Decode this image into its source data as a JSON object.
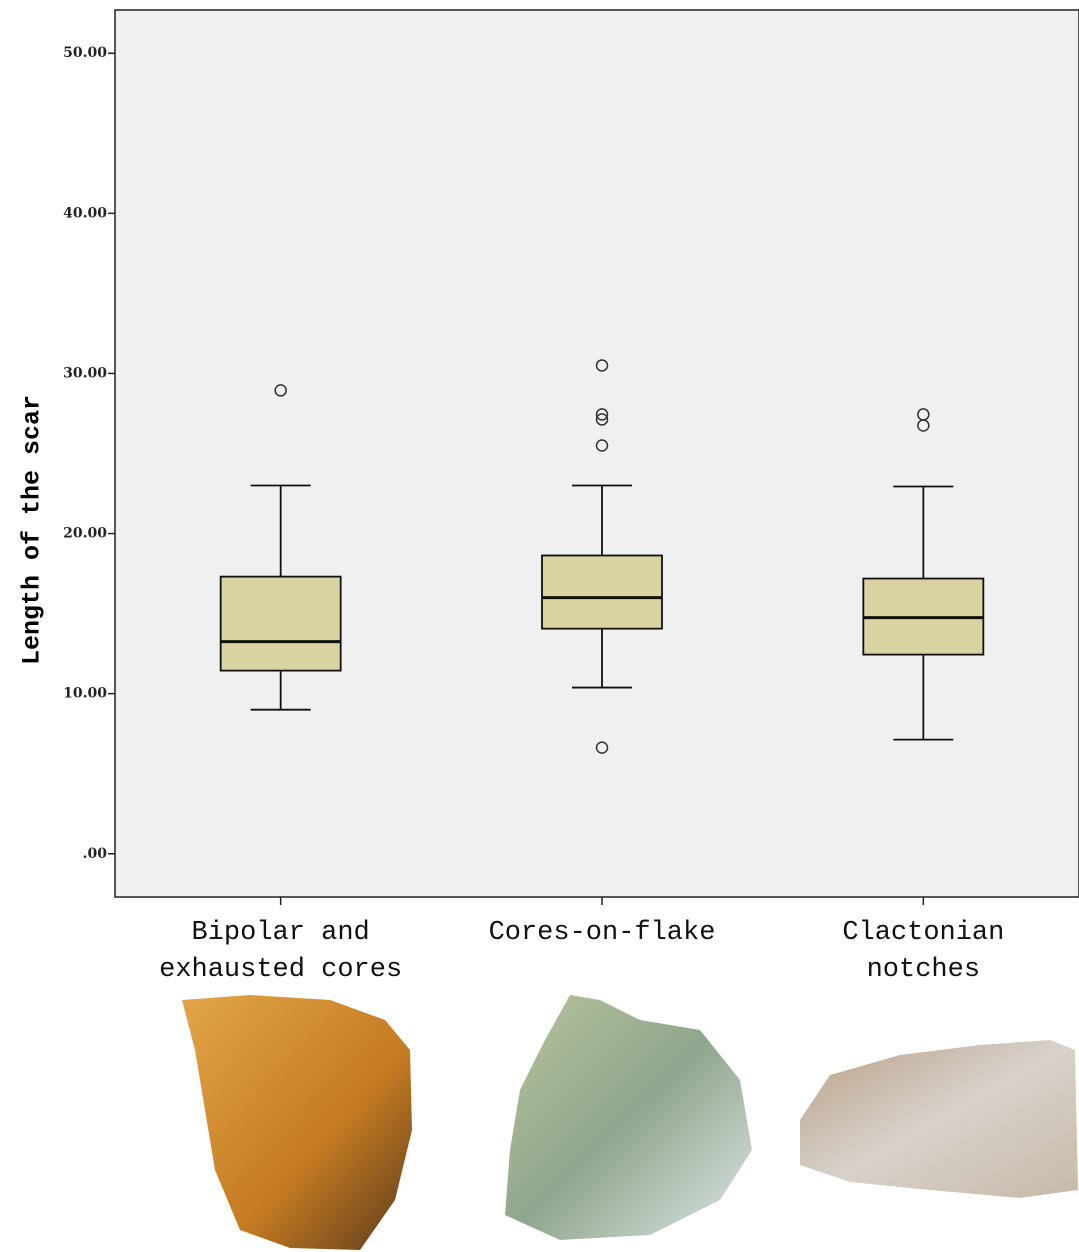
{
  "chart_data": {
    "type": "box",
    "y_label": "Length of the scar",
    "categories": [
      "Bipolar and exhausted cores",
      "Cores-on-flake",
      "Clactonian notches"
    ],
    "boxes": [
      {
        "whisker_low": 9.0,
        "q1": 11.44,
        "median": 13.25,
        "q3": 17.31,
        "whisker_high": 23.0,
        "outliers": [
          28.94
        ]
      },
      {
        "whisker_low": 10.38,
        "q1": 14.06,
        "median": 16.0,
        "q3": 18.63,
        "whisker_high": 23.0,
        "outliers": [
          30.5,
          27.44,
          27.13,
          25.5,
          6.63
        ]
      },
      {
        "whisker_low": 7.13,
        "q1": 12.44,
        "median": 14.75,
        "q3": 17.19,
        "whisker_high": 22.94,
        "outliers": [
          27.44,
          26.75
        ]
      }
    ],
    "color": "#d8d3a0",
    "background": "#f0f0f0",
    "ylim": [
      -2.7,
      52.7
    ],
    "yticks": [
      {
        "value": 0,
        "label": ".00"
      },
      {
        "value": 10,
        "label": "10.00"
      },
      {
        "value": 20,
        "label": "20.00"
      },
      {
        "value": 30,
        "label": "30.00"
      },
      {
        "value": 40,
        "label": "40.00"
      },
      {
        "value": 50,
        "label": "50.00"
      }
    ]
  }
}
